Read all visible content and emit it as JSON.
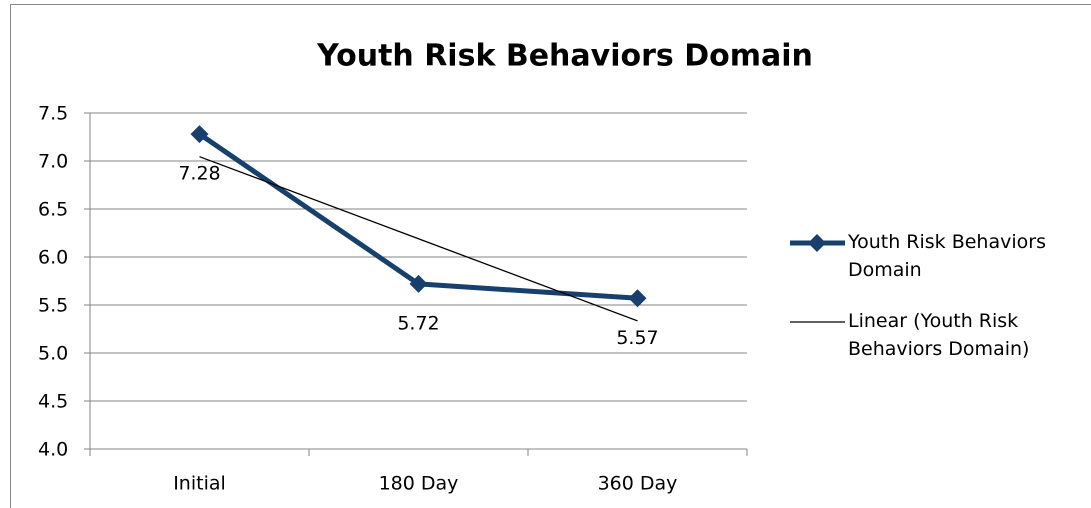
{
  "chart_data": {
    "type": "line",
    "title": "Youth Risk Behaviors Domain",
    "categories": [
      "Initial",
      "180 Day",
      "360 Day"
    ],
    "series": [
      {
        "name": "Youth Risk Behaviors Domain",
        "color": "#17406d",
        "values": [
          7.28,
          5.72,
          5.57
        ],
        "markers": "diamond",
        "data_labels": true
      },
      {
        "name": "Linear (Youth Risk Behaviors Domain)",
        "color": "#000000",
        "values": [
          7.045,
          6.19,
          5.335
        ],
        "markers": "none",
        "data_labels": false
      }
    ],
    "ylim": [
      4,
      7.5
    ],
    "yticks": [
      {
        "value": 4,
        "label": "4.0"
      },
      {
        "value": 4.5,
        "label": "4.5"
      },
      {
        "value": 5,
        "label": "5.0"
      },
      {
        "value": 5.5,
        "label": "5.5"
      },
      {
        "value": 6,
        "label": "6.0"
      },
      {
        "value": 6.5,
        "label": "6.5"
      },
      {
        "value": 7,
        "label": "7.0"
      },
      {
        "value": 7.5,
        "label": "7.5"
      }
    ],
    "grid": true,
    "legend": "right"
  }
}
